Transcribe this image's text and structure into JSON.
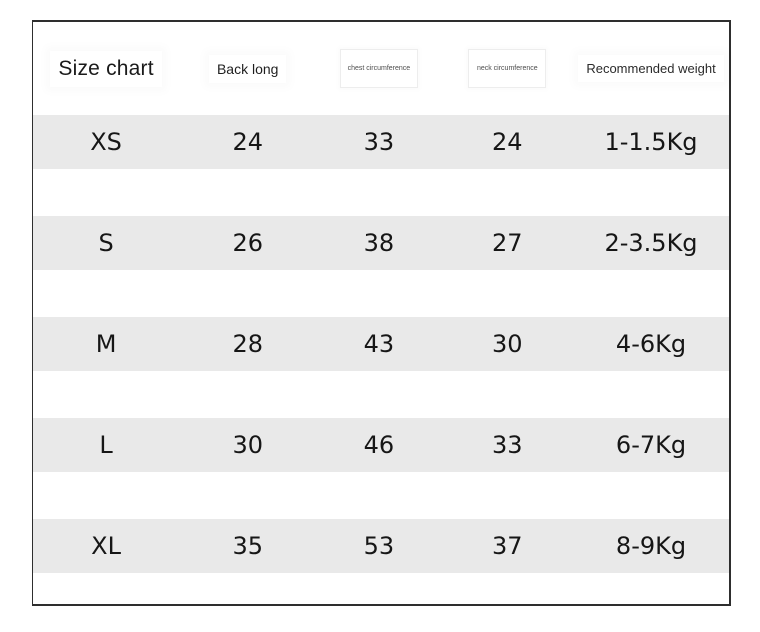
{
  "chart_data": {
    "type": "table",
    "title": "Size chart",
    "columns": [
      "Size chart",
      "Back long",
      "chest circumference",
      "neck circumference",
      "Recommended weight"
    ],
    "rows": [
      [
        "XS",
        "24",
        "33",
        "24",
        "1-1.5Kg"
      ],
      [
        "S",
        "26",
        "38",
        "27",
        "2-3.5Kg"
      ],
      [
        "M",
        "28",
        "43",
        "30",
        "4-6Kg"
      ],
      [
        "L",
        "30",
        "46",
        "33",
        "6-7Kg"
      ],
      [
        "XL",
        "35",
        "53",
        "37",
        "8-9Kg"
      ]
    ],
    "units_note": "",
    "legend_position": "none",
    "grid": false
  },
  "colors": {
    "row_stripe": "#e9e9e9",
    "table_border": "#2e2e2e",
    "text": "#161616",
    "muted_text": "#4d4d4d"
  }
}
